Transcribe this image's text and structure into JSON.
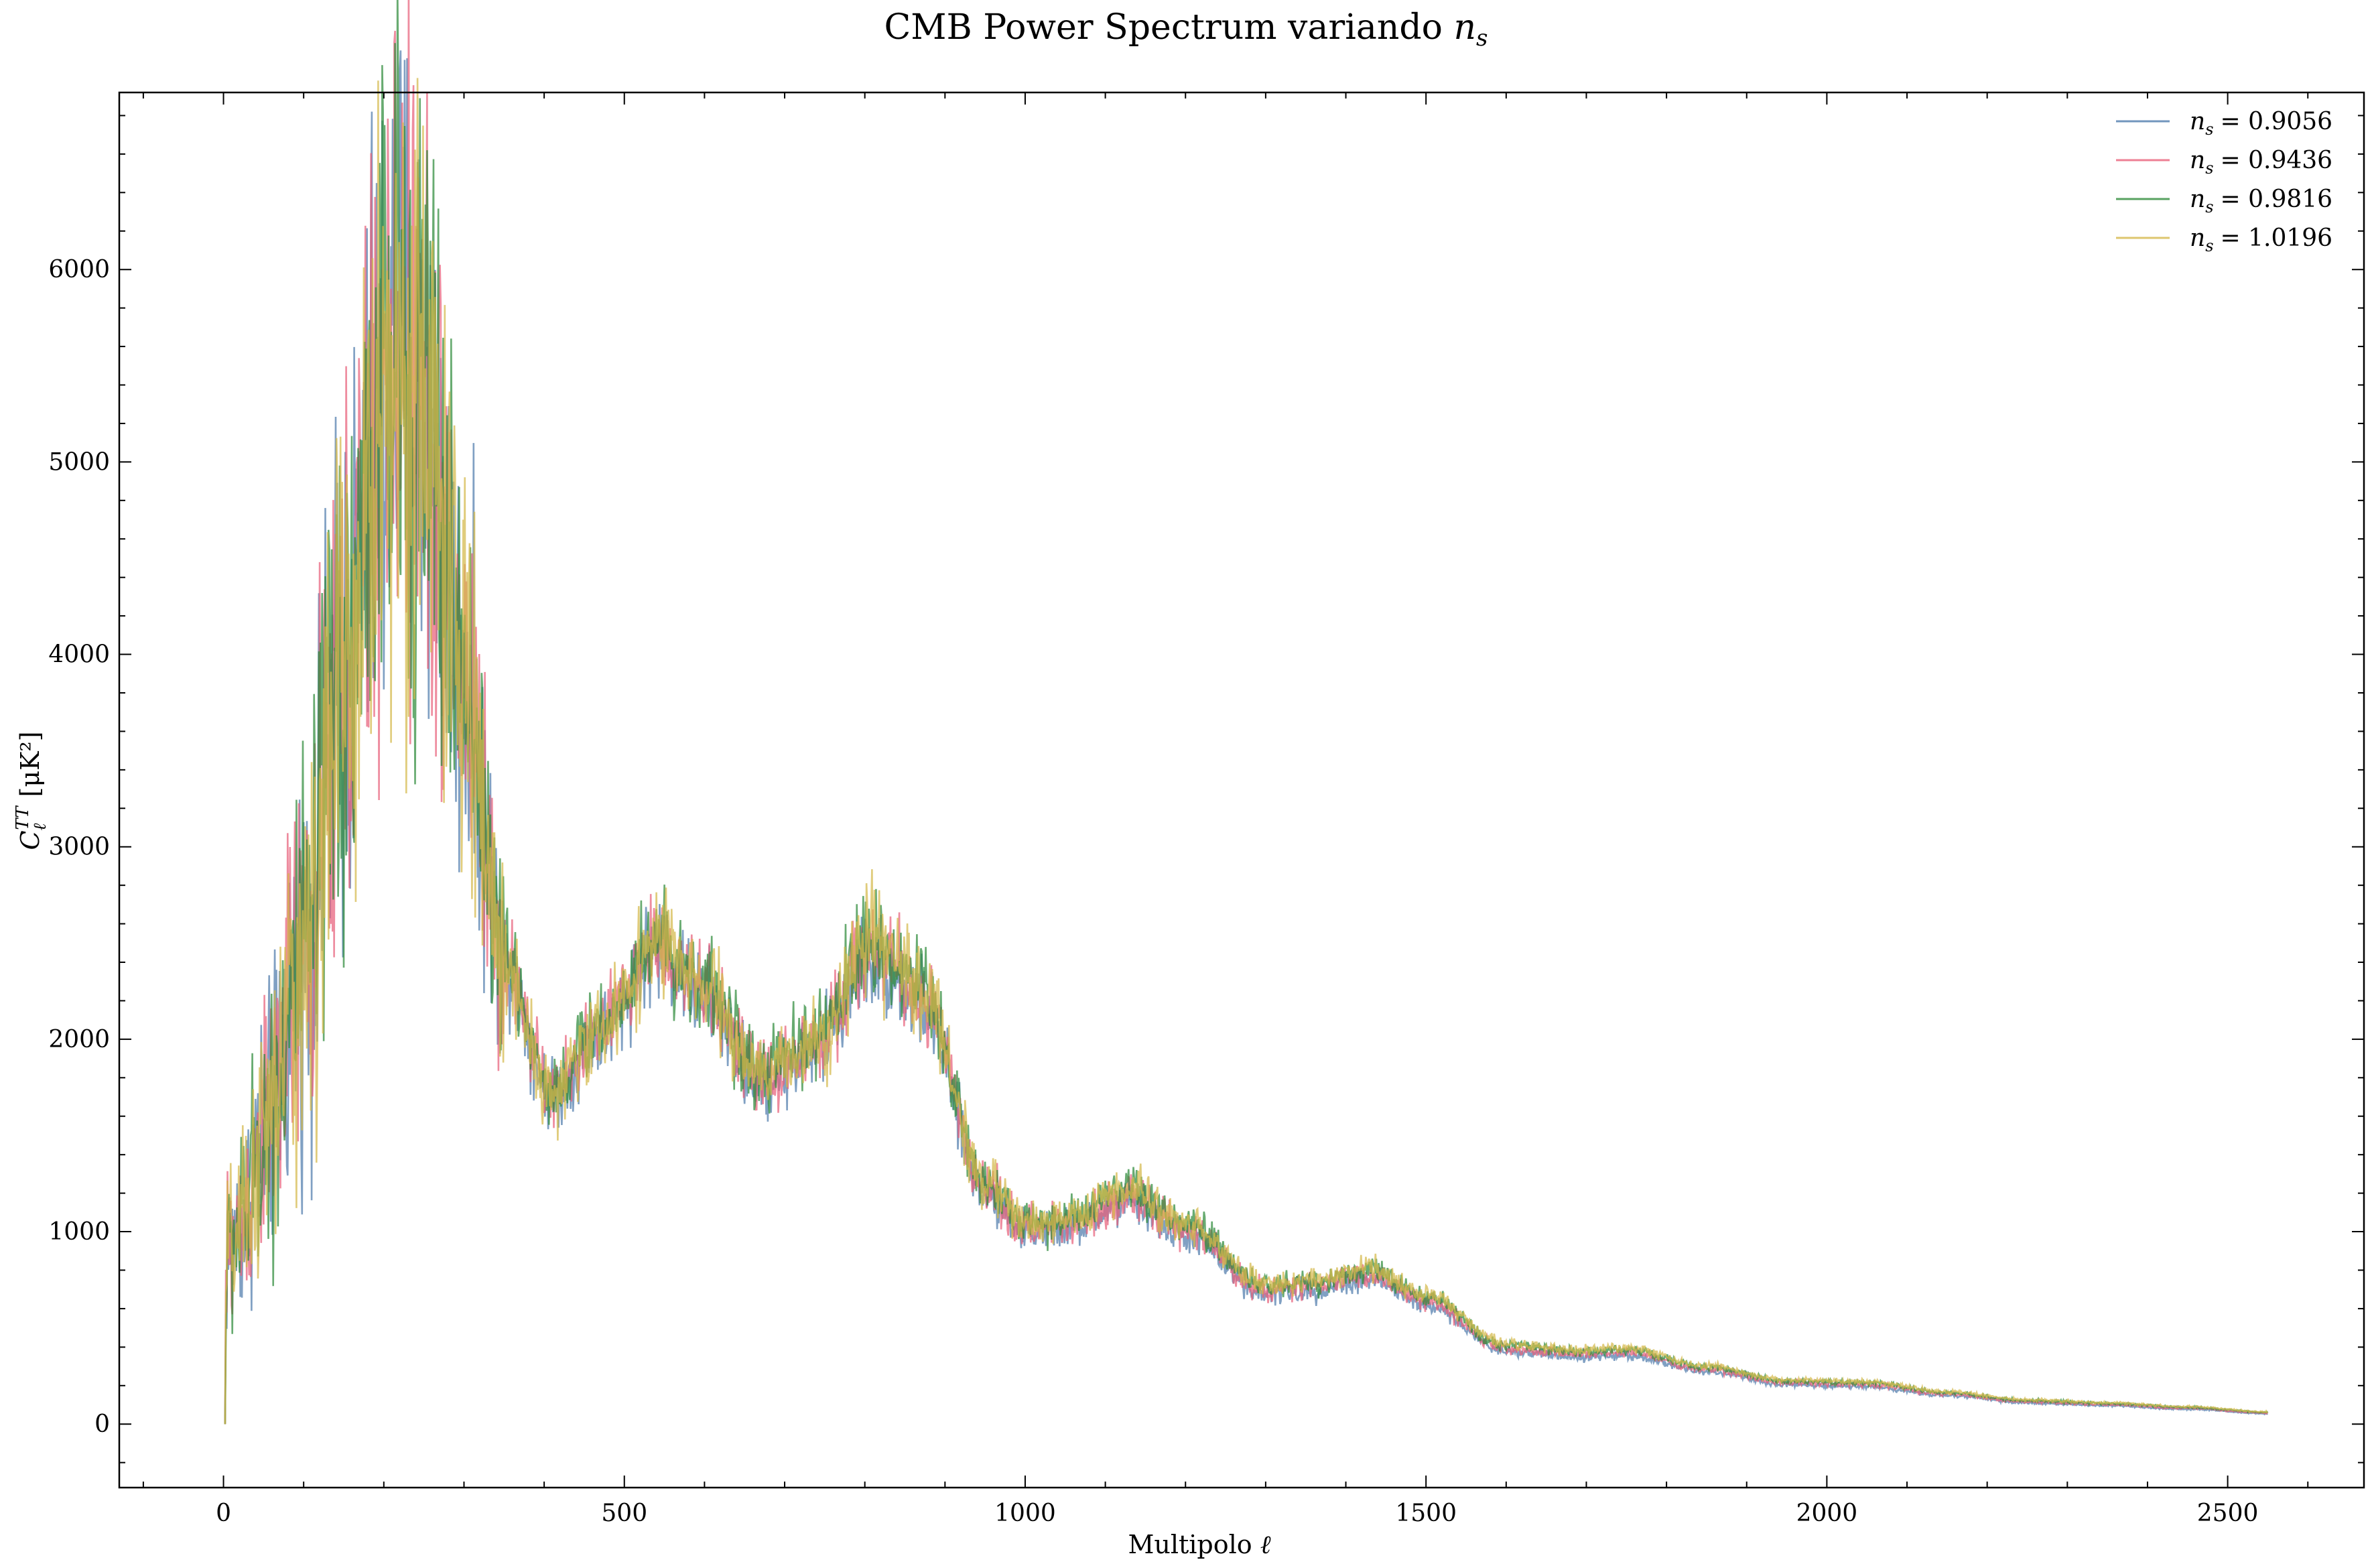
{
  "chart_data": {
    "type": "line",
    "title": "CMB Power Spectrum variando",
    "title_math": "n",
    "title_math_sub": "s",
    "xlabel": "Multipolo",
    "xlabel_symbol": "ℓ",
    "ylabel": "C",
    "ylabel_sub": "ℓ",
    "ylabel_sup": "TT",
    "ylabel_unit": "[μK²]",
    "xlim": [
      -130,
      2670
    ],
    "ylim": [
      -330,
      6920
    ],
    "xticks": [
      0,
      500,
      1000,
      1500,
      2000,
      2500
    ],
    "yticks": [
      0,
      1000,
      2000,
      3000,
      4000,
      5000,
      6000
    ],
    "legend_position": "top-right",
    "legend_prefix": "n",
    "legend_prefix_sub": "s",
    "grid": false,
    "noise": {
      "low_ell_amplitude_fraction": 0.12,
      "high_ell_amplitude_fraction": 0.03
    },
    "envelope": [
      {
        "x": 0,
        "y": 0
      },
      {
        "x": 5,
        "y": 900
      },
      {
        "x": 20,
        "y": 1000
      },
      {
        "x": 50,
        "y": 1500
      },
      {
        "x": 100,
        "y": 2400
      },
      {
        "x": 150,
        "y": 3900
      },
      {
        "x": 200,
        "y": 5300
      },
      {
        "x": 220,
        "y": 5550
      },
      {
        "x": 250,
        "y": 5300
      },
      {
        "x": 300,
        "y": 3900
      },
      {
        "x": 350,
        "y": 2400
      },
      {
        "x": 410,
        "y": 1720
      },
      {
        "x": 470,
        "y": 2050
      },
      {
        "x": 540,
        "y": 2500
      },
      {
        "x": 600,
        "y": 2250
      },
      {
        "x": 670,
        "y": 1800
      },
      {
        "x": 730,
        "y": 1950
      },
      {
        "x": 810,
        "y": 2480
      },
      {
        "x": 870,
        "y": 2250
      },
      {
        "x": 950,
        "y": 1250
      },
      {
        "x": 1000,
        "y": 1030
      },
      {
        "x": 1050,
        "y": 1050
      },
      {
        "x": 1130,
        "y": 1190
      },
      {
        "x": 1200,
        "y": 1020
      },
      {
        "x": 1300,
        "y": 710
      },
      {
        "x": 1350,
        "y": 720
      },
      {
        "x": 1430,
        "y": 790
      },
      {
        "x": 1500,
        "y": 650
      },
      {
        "x": 1600,
        "y": 400
      },
      {
        "x": 1700,
        "y": 370
      },
      {
        "x": 1750,
        "y": 380
      },
      {
        "x": 1850,
        "y": 290
      },
      {
        "x": 1950,
        "y": 220
      },
      {
        "x": 2050,
        "y": 210
      },
      {
        "x": 2150,
        "y": 160
      },
      {
        "x": 2250,
        "y": 120
      },
      {
        "x": 2350,
        "y": 105
      },
      {
        "x": 2450,
        "y": 85
      },
      {
        "x": 2550,
        "y": 60
      }
    ],
    "series": [
      {
        "name": "= 0.9056",
        "color": "#4f7cac",
        "scale": 0.99,
        "tilt": -0.1
      },
      {
        "name": "= 0.9436",
        "color": "#e8607a",
        "scale": 1.0,
        "tilt": -0.04
      },
      {
        "name": "= 0.9816",
        "color": "#2e8b3a",
        "scale": 1.01,
        "tilt": 0.02
      },
      {
        "name": "= 1.0196",
        "color": "#d4b84a",
        "scale": 1.0,
        "tilt": 0.08
      }
    ]
  }
}
